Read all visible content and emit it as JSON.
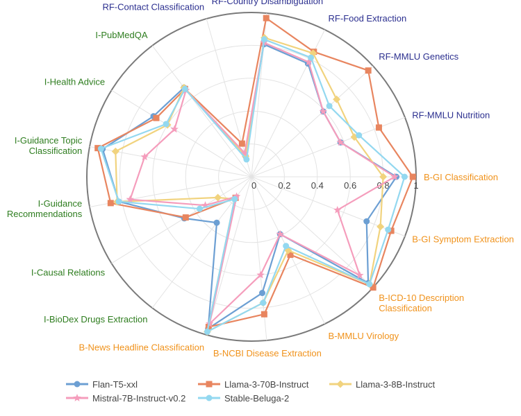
{
  "chart_data": {
    "type": "radar",
    "radial_range": [
      0,
      1
    ],
    "radial_ticks": [
      "0",
      "0.2",
      "0.4",
      "0.6",
      "0.8",
      "1"
    ],
    "radial_tick_values": [
      0,
      0.2,
      0.4,
      0.6,
      0.8,
      1
    ],
    "legend_position": "bottom",
    "categories": [
      {
        "label": "B-GI Classification",
        "group": "B"
      },
      {
        "label": "B-GI Symptom Extraction",
        "group": "B"
      },
      {
        "label": "B-ICD-10 Description Classification",
        "group": "B"
      },
      {
        "label": "B-MMLU Virology",
        "group": "B"
      },
      {
        "label": "B-NCBI Disease Extraction",
        "group": "B"
      },
      {
        "label": "B-News Headline Classification",
        "group": "B"
      },
      {
        "label": "I-BioDex Drugs Extraction",
        "group": "I"
      },
      {
        "label": "I-Causal Relations",
        "group": "I"
      },
      {
        "label": "I-Guidance Recommendations",
        "group": "I"
      },
      {
        "label": "I-Guidance Topic Classification",
        "group": "I"
      },
      {
        "label": "I-Health Advice",
        "group": "I"
      },
      {
        "label": "I-PubMedQA",
        "group": "I"
      },
      {
        "label": "RF-Contact Classification",
        "group": "RF"
      },
      {
        "label": "RF-Country Disambiguation",
        "group": "RF"
      },
      {
        "label": "RF-Food Extraction",
        "group": "RF"
      },
      {
        "label": "RF-MMLU Genetics",
        "group": "RF"
      },
      {
        "label": "RF-MMLU Nutrition",
        "group": "RF"
      }
    ],
    "group_colors": {
      "B": "#f0921b",
      "I": "#2e7d1f",
      "RF": "#2b2f8f"
    },
    "series": [
      {
        "name": "Flan-T5-xxl",
        "color": "#6c9fd3",
        "marker": "circle",
        "values": [
          0.88,
          0.75,
          0.96,
          0.39,
          0.71,
          0.96,
          0.35,
          0.48,
          0.82,
          0.92,
          0.7,
          0.68,
          0.13,
          0.81,
          0.77,
          0.59,
          0.58
        ]
      },
      {
        "name": "Llama-3-70B-Instruct",
        "color": "#e8855f",
        "marker": "square",
        "values": [
          0.98,
          0.91,
          1.0,
          0.53,
          0.84,
          0.95,
          0.16,
          0.47,
          0.87,
          0.95,
          0.68,
          0.67,
          0.21,
          0.97,
          0.85,
          0.96,
          0.83
        ]
      },
      {
        "name": "Llama-3-8B-Instruct",
        "color": "#f1d37e",
        "marker": "diamond",
        "values": [
          0.8,
          0.84,
          0.97,
          0.5,
          0.77,
          0.98,
          0.17,
          0.24,
          0.83,
          0.84,
          0.6,
          0.68,
          0.13,
          0.85,
          0.84,
          0.7,
          0.67
        ]
      },
      {
        "name": "Mistral-7B-Instruct-v0.2",
        "color": "#f59dbc",
        "marker": "star",
        "values": [
          0.87,
          0.56,
          0.89,
          0.39,
          0.6,
          0.93,
          0.15,
          0.33,
          0.75,
          0.66,
          0.55,
          0.66,
          0.15,
          0.82,
          0.78,
          0.59,
          0.58
        ]
      },
      {
        "name": "Stable-Beluga-2",
        "color": "#93d8f0",
        "marker": "circle",
        "values": [
          0.93,
          0.89,
          0.97,
          0.47,
          0.77,
          0.98,
          0.17,
          0.37,
          0.82,
          0.93,
          0.61,
          0.67,
          0.11,
          0.84,
          0.81,
          0.64,
          0.7
        ]
      }
    ]
  }
}
